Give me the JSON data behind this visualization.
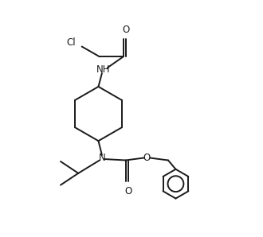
{
  "bg_color": "#ffffff",
  "line_color": "#1a1a1a",
  "line_width": 1.4,
  "font_size": 8.5,
  "figsize": [
    3.3,
    2.98
  ],
  "dpi": 100,
  "xlim": [
    0.0,
    1.0
  ],
  "ylim": [
    0.0,
    1.0
  ]
}
